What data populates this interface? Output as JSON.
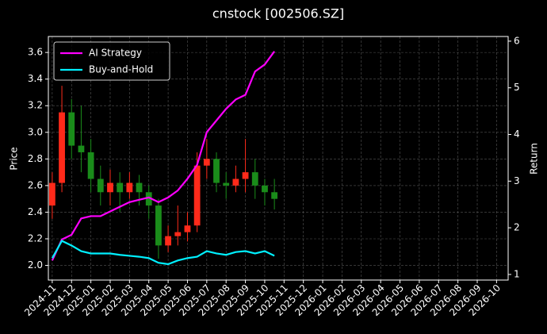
{
  "chart_data": {
    "type": "candlestick",
    "title": "cnstock [002506.SZ]",
    "ylabel": "Price",
    "y2label": "Return",
    "x": [
      0,
      0.5,
      1,
      1.5,
      2,
      2.5,
      3,
      3.5,
      4,
      4.5,
      5,
      5.5,
      6,
      6.5,
      7,
      7.5,
      8,
      8.5,
      9,
      9.5,
      10,
      10.5,
      11,
      11.5
    ],
    "open": [
      2.45,
      2.62,
      3.15,
      2.9,
      2.85,
      2.65,
      2.55,
      2.62,
      2.55,
      2.62,
      2.55,
      2.45,
      2.15,
      2.22,
      2.25,
      2.3,
      2.75,
      2.8,
      2.62,
      2.6,
      2.65,
      2.7,
      2.6,
      2.55
    ],
    "close": [
      2.62,
      3.15,
      2.9,
      2.85,
      2.65,
      2.55,
      2.62,
      2.55,
      2.62,
      2.55,
      2.45,
      2.15,
      2.22,
      2.25,
      2.3,
      2.75,
      2.8,
      2.62,
      2.6,
      2.65,
      2.7,
      2.6,
      2.55,
      2.5
    ],
    "high": [
      2.7,
      3.35,
      3.25,
      3.2,
      2.95,
      2.75,
      2.72,
      2.7,
      2.7,
      2.68,
      2.6,
      2.5,
      2.3,
      2.45,
      2.4,
      2.85,
      2.95,
      2.85,
      2.7,
      2.75,
      2.95,
      2.8,
      2.65,
      2.65
    ],
    "low": [
      2.35,
      2.55,
      2.8,
      2.7,
      2.55,
      2.45,
      2.45,
      2.4,
      2.5,
      2.45,
      2.35,
      2.05,
      2.1,
      2.15,
      2.18,
      2.25,
      2.65,
      2.55,
      2.5,
      2.55,
      2.55,
      2.5,
      2.45,
      2.42
    ],
    "up_color": "#ff2a1a",
    "down_color": "#1a8c1a",
    "series": [
      {
        "name": "AI Strategy",
        "color": "#ff00ff",
        "axis": "y2",
        "values": [
          1.3,
          1.75,
          1.85,
          2.2,
          2.25,
          2.25,
          2.35,
          2.45,
          2.55,
          2.6,
          2.65,
          2.55,
          2.65,
          2.8,
          3.05,
          3.35,
          4.05,
          4.3,
          4.55,
          4.75,
          4.85,
          5.35,
          5.5,
          5.78
        ]
      },
      {
        "name": "Buy-and-Hold",
        "color": "#00f0ff",
        "axis": "y2",
        "values": [
          1.35,
          1.72,
          1.62,
          1.5,
          1.45,
          1.45,
          1.45,
          1.42,
          1.4,
          1.38,
          1.35,
          1.25,
          1.22,
          1.3,
          1.35,
          1.38,
          1.5,
          1.45,
          1.42,
          1.48,
          1.5,
          1.45,
          1.5,
          1.4
        ]
      }
    ],
    "xlim": [
      -0.2,
      23.6
    ],
    "xticks": [
      {
        "value": 0,
        "label": "2024-11"
      },
      {
        "value": 1,
        "label": "2024-12"
      },
      {
        "value": 2,
        "label": "2025-01"
      },
      {
        "value": 3,
        "label": "2025-02"
      },
      {
        "value": 4,
        "label": "2025-03"
      },
      {
        "value": 5,
        "label": "2025-04"
      },
      {
        "value": 6,
        "label": "2025-05"
      },
      {
        "value": 7,
        "label": "2025-06"
      },
      {
        "value": 8,
        "label": "2025-07"
      },
      {
        "value": 9,
        "label": "2025-08"
      },
      {
        "value": 10,
        "label": "2025-09"
      },
      {
        "value": 11,
        "label": "2025-10"
      },
      {
        "value": 12,
        "label": "2025-11"
      },
      {
        "value": 13,
        "label": "2025-12"
      },
      {
        "value": 14,
        "label": "2026-01"
      },
      {
        "value": 15,
        "label": "2026-02"
      },
      {
        "value": 16,
        "label": "2026-03"
      },
      {
        "value": 17,
        "label": "2026-04"
      },
      {
        "value": 18,
        "label": "2026-05"
      },
      {
        "value": 19,
        "label": "2026-06"
      },
      {
        "value": 20,
        "label": "2026-07"
      },
      {
        "value": 21,
        "label": "2026-08"
      },
      {
        "value": 22,
        "label": "2026-09"
      },
      {
        "value": 23,
        "label": "2026-10"
      }
    ],
    "ylim": [
      1.89,
      3.72
    ],
    "yticks": [
      {
        "value": 2.0,
        "label": "2.0"
      },
      2.2,
      2.4,
      2.6,
      2.8,
      {
        "value": 3.0,
        "label": "3.0"
      },
      3.2,
      3.4,
      3.6
    ],
    "y2lim": [
      0.88,
      6.1
    ],
    "y2ticks": [
      1,
      2,
      3,
      4,
      5,
      6
    ],
    "grid": true,
    "legend": "upper left"
  }
}
